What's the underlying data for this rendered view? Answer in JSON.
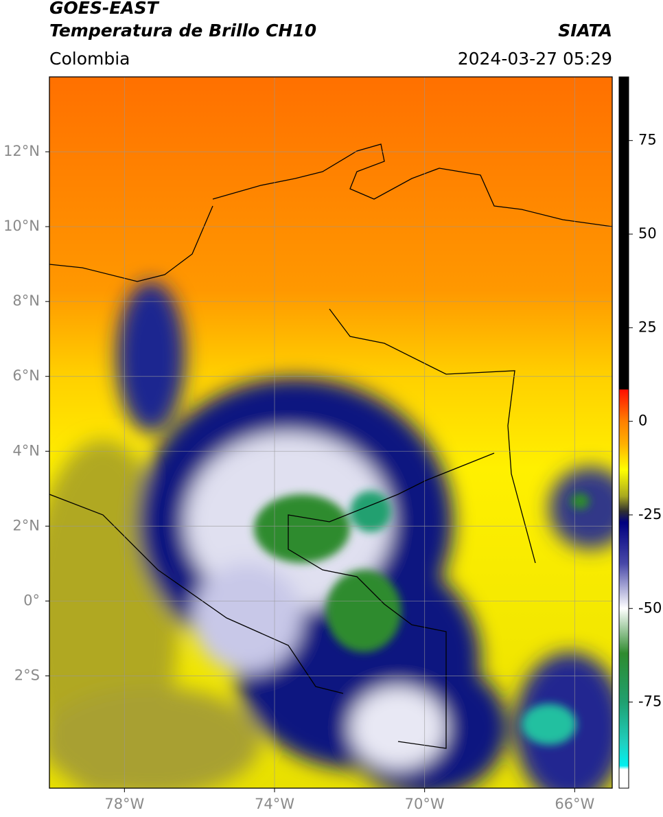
{
  "header": {
    "title_line1": "GOES-EAST",
    "title_line2": "Temperatura de Brillo CH10",
    "source": "SIATA",
    "region": "Colombia",
    "datetime": "2024-03-27 05:29"
  },
  "map": {
    "xlim": [
      -80,
      -65
    ],
    "ylim": [
      -5,
      14
    ],
    "xticks": [
      {
        "value": -78,
        "label": "78°W"
      },
      {
        "value": -74,
        "label": "74°W"
      },
      {
        "value": -70,
        "label": "70°W"
      },
      {
        "value": -66,
        "label": "66°W"
      }
    ],
    "yticks": [
      {
        "value": 12,
        "label": "12°N"
      },
      {
        "value": 10,
        "label": "10°N"
      },
      {
        "value": 8,
        "label": "8°N"
      },
      {
        "value": 6,
        "label": "6°N"
      },
      {
        "value": 4,
        "label": "4°N"
      },
      {
        "value": 2,
        "label": "2°N"
      },
      {
        "value": 0,
        "label": "0°"
      },
      {
        "value": -2,
        "label": "2°S"
      }
    ],
    "grid": true
  },
  "colorbar": {
    "lim": [
      -98,
      92
    ],
    "ticks": [
      75,
      50,
      25,
      0,
      -25,
      -50,
      -75
    ],
    "colormap": [
      {
        "value": 92,
        "color": "#000000"
      },
      {
        "value": 8.6,
        "color": "#000000"
      },
      {
        "value": 8.4,
        "color": "#ff1000"
      },
      {
        "value": 0,
        "color": "#ff8000"
      },
      {
        "value": -6,
        "color": "#ffb000"
      },
      {
        "value": -13,
        "color": "#ffff00"
      },
      {
        "value": -20,
        "color": "#a8a820"
      },
      {
        "value": -24,
        "color": "#303030"
      },
      {
        "value": -27,
        "color": "#000080"
      },
      {
        "value": -38,
        "color": "#4848a8"
      },
      {
        "value": -50,
        "color": "#ffffff"
      },
      {
        "value": -62,
        "color": "#2e8b2e"
      },
      {
        "value": -75,
        "color": "#20a070"
      },
      {
        "value": -86,
        "color": "#20d0c0"
      },
      {
        "value": -92,
        "color": "#00f0f0"
      },
      {
        "value": -93,
        "color": "#ffffff"
      },
      {
        "value": -98,
        "color": "#ffffff"
      }
    ]
  }
}
